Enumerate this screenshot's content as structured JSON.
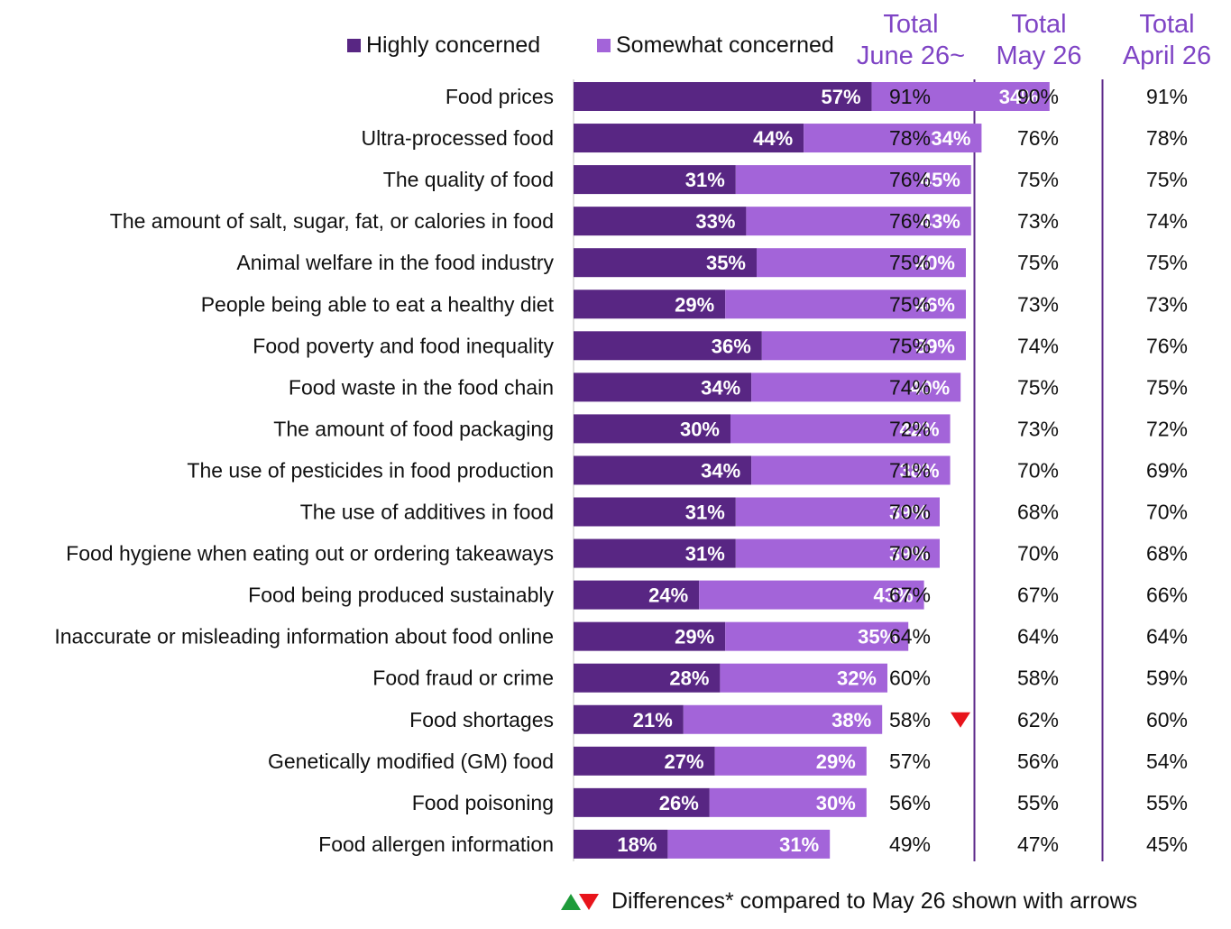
{
  "legend": {
    "highly_label": "Highly concerned",
    "somewhat_label": "Somewhat concerned"
  },
  "columns": [
    {
      "line1": "Total",
      "line2": "June 26~"
    },
    {
      "line1": "Total",
      "line2": "May 26"
    },
    {
      "line1": "Total",
      "line2": "April 26"
    }
  ],
  "colors": {
    "highly": "#582683",
    "somewhat": "#a364d9",
    "header": "#7f44c5",
    "divider": "#5d2a8a",
    "arrow_down": "#e8141b",
    "arrow_up": "#1e9b3a"
  },
  "footer": {
    "note": "Differences* compared to May 26 shown with arrows",
    "icons": [
      "up-arrow-icon",
      "down-arrow-icon"
    ]
  },
  "chart_data": {
    "type": "bar",
    "orientation": "horizontal",
    "stacked": true,
    "categories": [
      "Food prices",
      "Ultra-processed food",
      "The quality of food",
      "The amount of salt, sugar, fat, or calories in food",
      "Animal welfare in the food industry",
      "People being able to eat a healthy diet",
      "Food poverty and food inequality",
      "Food waste in the food chain",
      "The amount of food packaging",
      "The use of pesticides in food production",
      "The use of additives in food",
      "Food hygiene when eating out or ordering takeaways",
      "Food being produced sustainably",
      "Inaccurate or misleading information about food online",
      "Food fraud or crime",
      "Food shortages",
      "Genetically modified (GM) food",
      "Food poisoning",
      "Food allergen information"
    ],
    "series": [
      {
        "name": "Highly concerned",
        "values": [
          57,
          44,
          31,
          33,
          35,
          29,
          36,
          34,
          30,
          34,
          31,
          31,
          24,
          29,
          28,
          21,
          27,
          26,
          18
        ]
      },
      {
        "name": "Somewhat concerned",
        "values": [
          34,
          34,
          45,
          43,
          40,
          46,
          39,
          40,
          42,
          38,
          39,
          39,
          43,
          35,
          32,
          38,
          29,
          30,
          31
        ]
      }
    ],
    "value_suffix": "%",
    "table": {
      "columns": [
        "Total June 26~",
        "Total May 26",
        "Total April 26"
      ],
      "rows": [
        [
          "91%",
          "90%",
          "91%"
        ],
        [
          "78%",
          "76%",
          "78%"
        ],
        [
          "76%",
          "75%",
          "75%"
        ],
        [
          "76%",
          "73%",
          "74%"
        ],
        [
          "75%",
          "75%",
          "75%"
        ],
        [
          "75%",
          "73%",
          "73%"
        ],
        [
          "75%",
          "74%",
          "76%"
        ],
        [
          "74%",
          "75%",
          "75%"
        ],
        [
          "72%",
          "73%",
          "72%"
        ],
        [
          "71%",
          "70%",
          "69%"
        ],
        [
          "70%",
          "68%",
          "70%"
        ],
        [
          "70%",
          "70%",
          "68%"
        ],
        [
          "67%",
          "67%",
          "66%"
        ],
        [
          "64%",
          "64%",
          "64%"
        ],
        [
          "60%",
          "58%",
          "59%"
        ],
        [
          "58%",
          "62%",
          "60%"
        ],
        [
          "57%",
          "56%",
          "54%"
        ],
        [
          "56%",
          "55%",
          "55%"
        ],
        [
          "49%",
          "47%",
          "45%"
        ]
      ]
    },
    "significance": [
      {
        "category": "Food shortages",
        "direction": "down"
      }
    ]
  }
}
